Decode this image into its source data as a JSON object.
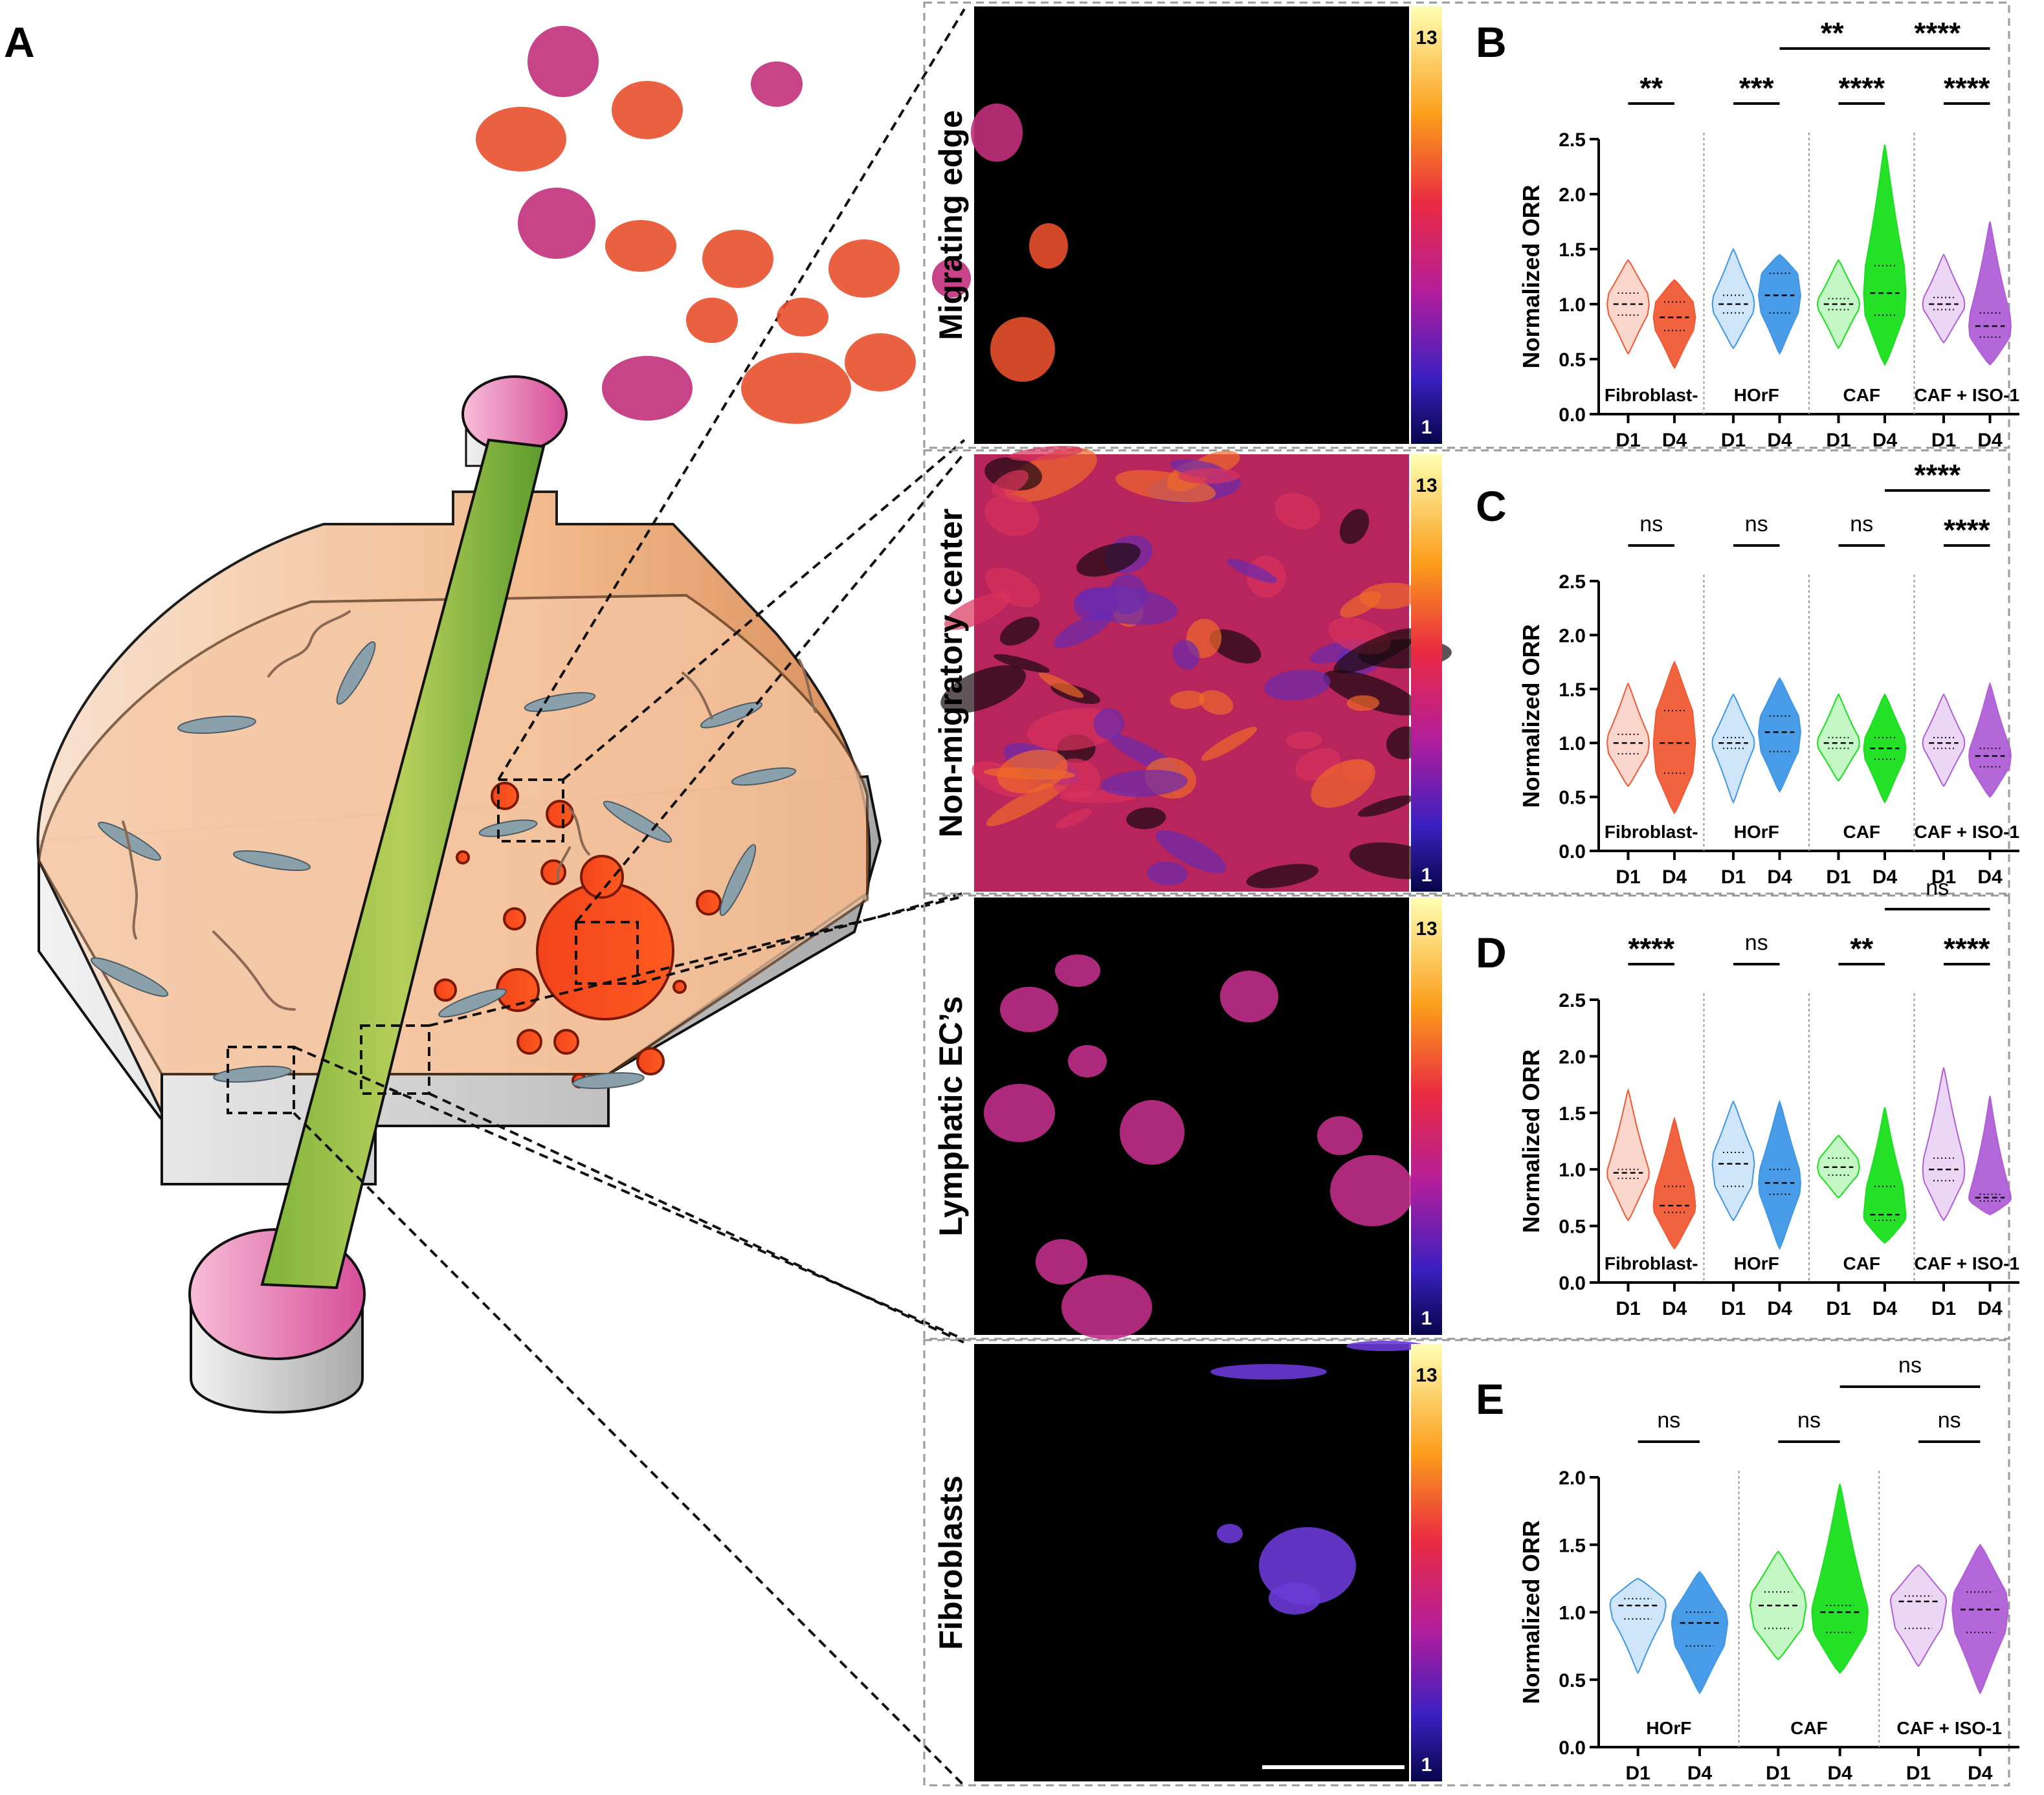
{
  "panel_labels": {
    "A": "A",
    "B": "B",
    "C": "C",
    "D": "D",
    "E": "E"
  },
  "image_rows": [
    {
      "label": "Migrating edge",
      "cbar_max": "13",
      "cbar_min": "1"
    },
    {
      "label": "Non-migratory center",
      "cbar_max": "13",
      "cbar_min": "1"
    },
    {
      "label": "Lymphatic EC’s",
      "cbar_max": "13",
      "cbar_min": "1"
    },
    {
      "label": "Fibroblasts",
      "cbar_max": "13",
      "cbar_min": "1"
    }
  ],
  "colors": {
    "fibroblast_minus": "#f05a35",
    "horf": "#3f97e6",
    "caf": "#19e01c",
    "caf_iso1": "#b05fd6"
  },
  "chart_data": [
    {
      "panel": "B",
      "type": "violin",
      "ylabel": "Normalized ORR",
      "ylim": [
        0,
        2.5
      ],
      "yticks": [
        "0.0",
        "0.5",
        "1.0",
        "1.5",
        "2.0",
        "2.5"
      ],
      "x_tick_labels": [
        "D1",
        "D4"
      ],
      "groups": [
        {
          "name": "Fibroblast-",
          "color": "#f05a35",
          "D1": {
            "median": 1.0,
            "q1": 0.9,
            "q3": 1.1,
            "min": 0.55,
            "max": 1.4
          },
          "D4": {
            "median": 0.88,
            "q1": 0.76,
            "q3": 1.02,
            "min": 0.42,
            "max": 1.22
          }
        },
        {
          "name": "HOrF",
          "color": "#3f97e6",
          "D1": {
            "median": 1.0,
            "q1": 0.92,
            "q3": 1.08,
            "min": 0.6,
            "max": 1.5
          },
          "D4": {
            "median": 1.08,
            "q1": 0.92,
            "q3": 1.28,
            "min": 0.55,
            "max": 1.45
          }
        },
        {
          "name": "CAF",
          "color": "#19e01c",
          "D1": {
            "median": 1.0,
            "q1": 0.95,
            "q3": 1.05,
            "min": 0.6,
            "max": 1.4
          },
          "D4": {
            "median": 1.1,
            "q1": 0.9,
            "q3": 1.35,
            "min": 0.45,
            "max": 2.45
          }
        },
        {
          "name": "CAF + ISO-1",
          "color": "#b05fd6",
          "D1": {
            "median": 1.0,
            "q1": 0.95,
            "q3": 1.06,
            "min": 0.65,
            "max": 1.45
          },
          "D4": {
            "median": 0.8,
            "q1": 0.7,
            "q3": 0.92,
            "min": 0.45,
            "max": 1.75
          }
        }
      ],
      "significance": [
        {
          "label": "**",
          "span": "Fibroblast- D1 vs D4"
        },
        {
          "label": "***",
          "span": "HOrF D1 vs D4"
        },
        {
          "label": "****",
          "span": "CAF D1 vs D4"
        },
        {
          "label": "****",
          "span": "CAF + ISO-1 D1 vs D4"
        },
        {
          "label": "**",
          "span": "HOrF D4 vs CAF D4"
        },
        {
          "label": "****",
          "span": "CAF D4 vs CAF + ISO-1 D4"
        }
      ]
    },
    {
      "panel": "C",
      "type": "violin",
      "ylabel": "Normalized ORR",
      "ylim": [
        0,
        2.5
      ],
      "yticks": [
        "0.0",
        "0.5",
        "1.0",
        "1.5",
        "2.0",
        "2.5"
      ],
      "x_tick_labels": [
        "D1",
        "D4"
      ],
      "groups": [
        {
          "name": "Fibroblast-",
          "color": "#f05a35",
          "D1": {
            "median": 1.0,
            "q1": 0.9,
            "q3": 1.08,
            "min": 0.6,
            "max": 1.55
          },
          "D4": {
            "median": 1.0,
            "q1": 0.72,
            "q3": 1.3,
            "min": 0.35,
            "max": 1.75
          }
        },
        {
          "name": "HOrF",
          "color": "#3f97e6",
          "D1": {
            "median": 1.0,
            "q1": 0.95,
            "q3": 1.05,
            "min": 0.45,
            "max": 1.45
          },
          "D4": {
            "median": 1.1,
            "q1": 0.92,
            "q3": 1.25,
            "min": 0.55,
            "max": 1.6
          }
        },
        {
          "name": "CAF",
          "color": "#19e01c",
          "D1": {
            "median": 1.0,
            "q1": 0.95,
            "q3": 1.05,
            "min": 0.65,
            "max": 1.45
          },
          "D4": {
            "median": 0.95,
            "q1": 0.85,
            "q3": 1.05,
            "min": 0.45,
            "max": 1.45
          }
        },
        {
          "name": "CAF + ISO-1",
          "color": "#b05fd6",
          "D1": {
            "median": 1.0,
            "q1": 0.95,
            "q3": 1.05,
            "min": 0.6,
            "max": 1.45
          },
          "D4": {
            "median": 0.88,
            "q1": 0.78,
            "q3": 0.95,
            "min": 0.5,
            "max": 1.55
          }
        }
      ],
      "significance": [
        {
          "label": "ns",
          "span": "Fibroblast- D1 vs D4"
        },
        {
          "label": "ns",
          "span": "HOrF D1 vs D4"
        },
        {
          "label": "ns",
          "span": "CAF D1 vs D4"
        },
        {
          "label": "****",
          "span": "CAF + ISO-1 D1 vs D4"
        },
        {
          "label": "****",
          "span": "CAF D4 vs CAF + ISO-1 D4"
        }
      ]
    },
    {
      "panel": "D",
      "type": "violin",
      "ylabel": "Normalized ORR",
      "ylim": [
        0,
        2.5
      ],
      "yticks": [
        "0.0",
        "0.5",
        "1.0",
        "1.5",
        "2.0",
        "2.5"
      ],
      "x_tick_labels": [
        "D1",
        "D4"
      ],
      "groups": [
        {
          "name": "Fibroblast-",
          "color": "#f05a35",
          "D1": {
            "median": 0.97,
            "q1": 0.92,
            "q3": 1.0,
            "min": 0.55,
            "max": 1.7
          },
          "D4": {
            "median": 0.68,
            "q1": 0.62,
            "q3": 0.85,
            "min": 0.3,
            "max": 1.45
          }
        },
        {
          "name": "HOrF",
          "color": "#3f97e6",
          "D1": {
            "median": 1.05,
            "q1": 0.85,
            "q3": 1.15,
            "min": 0.55,
            "max": 1.6
          },
          "D4": {
            "median": 0.88,
            "q1": 0.78,
            "q3": 1.0,
            "min": 0.3,
            "max": 1.6
          }
        },
        {
          "name": "CAF",
          "color": "#19e01c",
          "D1": {
            "median": 1.02,
            "q1": 0.95,
            "q3": 1.1,
            "min": 0.75,
            "max": 1.3
          },
          "D4": {
            "median": 0.6,
            "q1": 0.55,
            "q3": 0.85,
            "min": 0.35,
            "max": 1.55
          }
        },
        {
          "name": "CAF + ISO-1",
          "color": "#b05fd6",
          "D1": {
            "median": 1.0,
            "q1": 0.9,
            "q3": 1.1,
            "min": 0.55,
            "max": 1.9
          },
          "D4": {
            "median": 0.75,
            "q1": 0.72,
            "q3": 0.78,
            "min": 0.6,
            "max": 1.65
          }
        }
      ],
      "significance": [
        {
          "label": "****",
          "span": "Fibroblast- D1 vs D4"
        },
        {
          "label": "ns",
          "span": "HOrF D1 vs D4"
        },
        {
          "label": "**",
          "span": "CAF D1 vs D4"
        },
        {
          "label": "****",
          "span": "CAF + ISO-1 D1 vs D4"
        },
        {
          "label": "ns",
          "span": "CAF D4 vs CAF + ISO-1 D4"
        }
      ]
    },
    {
      "panel": "E",
      "type": "violin",
      "ylabel": "Normalized ORR",
      "ylim": [
        0,
        2.0
      ],
      "yticks": [
        "0.0",
        "0.5",
        "1.0",
        "1.5",
        "2.0"
      ],
      "x_tick_labels": [
        "D1",
        "D4"
      ],
      "groups": [
        {
          "name": "HOrF",
          "color": "#3f97e6",
          "D1": {
            "median": 1.05,
            "q1": 0.95,
            "q3": 1.1,
            "min": 0.55,
            "max": 1.25
          },
          "D4": {
            "median": 0.92,
            "q1": 0.75,
            "q3": 1.0,
            "min": 0.4,
            "max": 1.3
          }
        },
        {
          "name": "CAF",
          "color": "#19e01c",
          "D1": {
            "median": 1.05,
            "q1": 0.88,
            "q3": 1.15,
            "min": 0.65,
            "max": 1.45
          },
          "D4": {
            "median": 1.0,
            "q1": 0.85,
            "q3": 1.05,
            "min": 0.55,
            "max": 1.95
          }
        },
        {
          "name": "CAF + ISO-1",
          "color": "#b05fd6",
          "D1": {
            "median": 1.08,
            "q1": 0.88,
            "q3": 1.12,
            "min": 0.6,
            "max": 1.35
          },
          "D4": {
            "median": 1.02,
            "q1": 0.85,
            "q3": 1.15,
            "min": 0.4,
            "max": 1.5
          }
        }
      ],
      "significance": [
        {
          "label": "ns",
          "span": "HOrF D1 vs D4"
        },
        {
          "label": "ns",
          "span": "CAF D1 vs D4"
        },
        {
          "label": "ns",
          "span": "CAF + ISO-1 D1 vs D4"
        },
        {
          "label": "ns",
          "span": "CAF D4 vs CAF + ISO-1 D4"
        }
      ]
    }
  ]
}
